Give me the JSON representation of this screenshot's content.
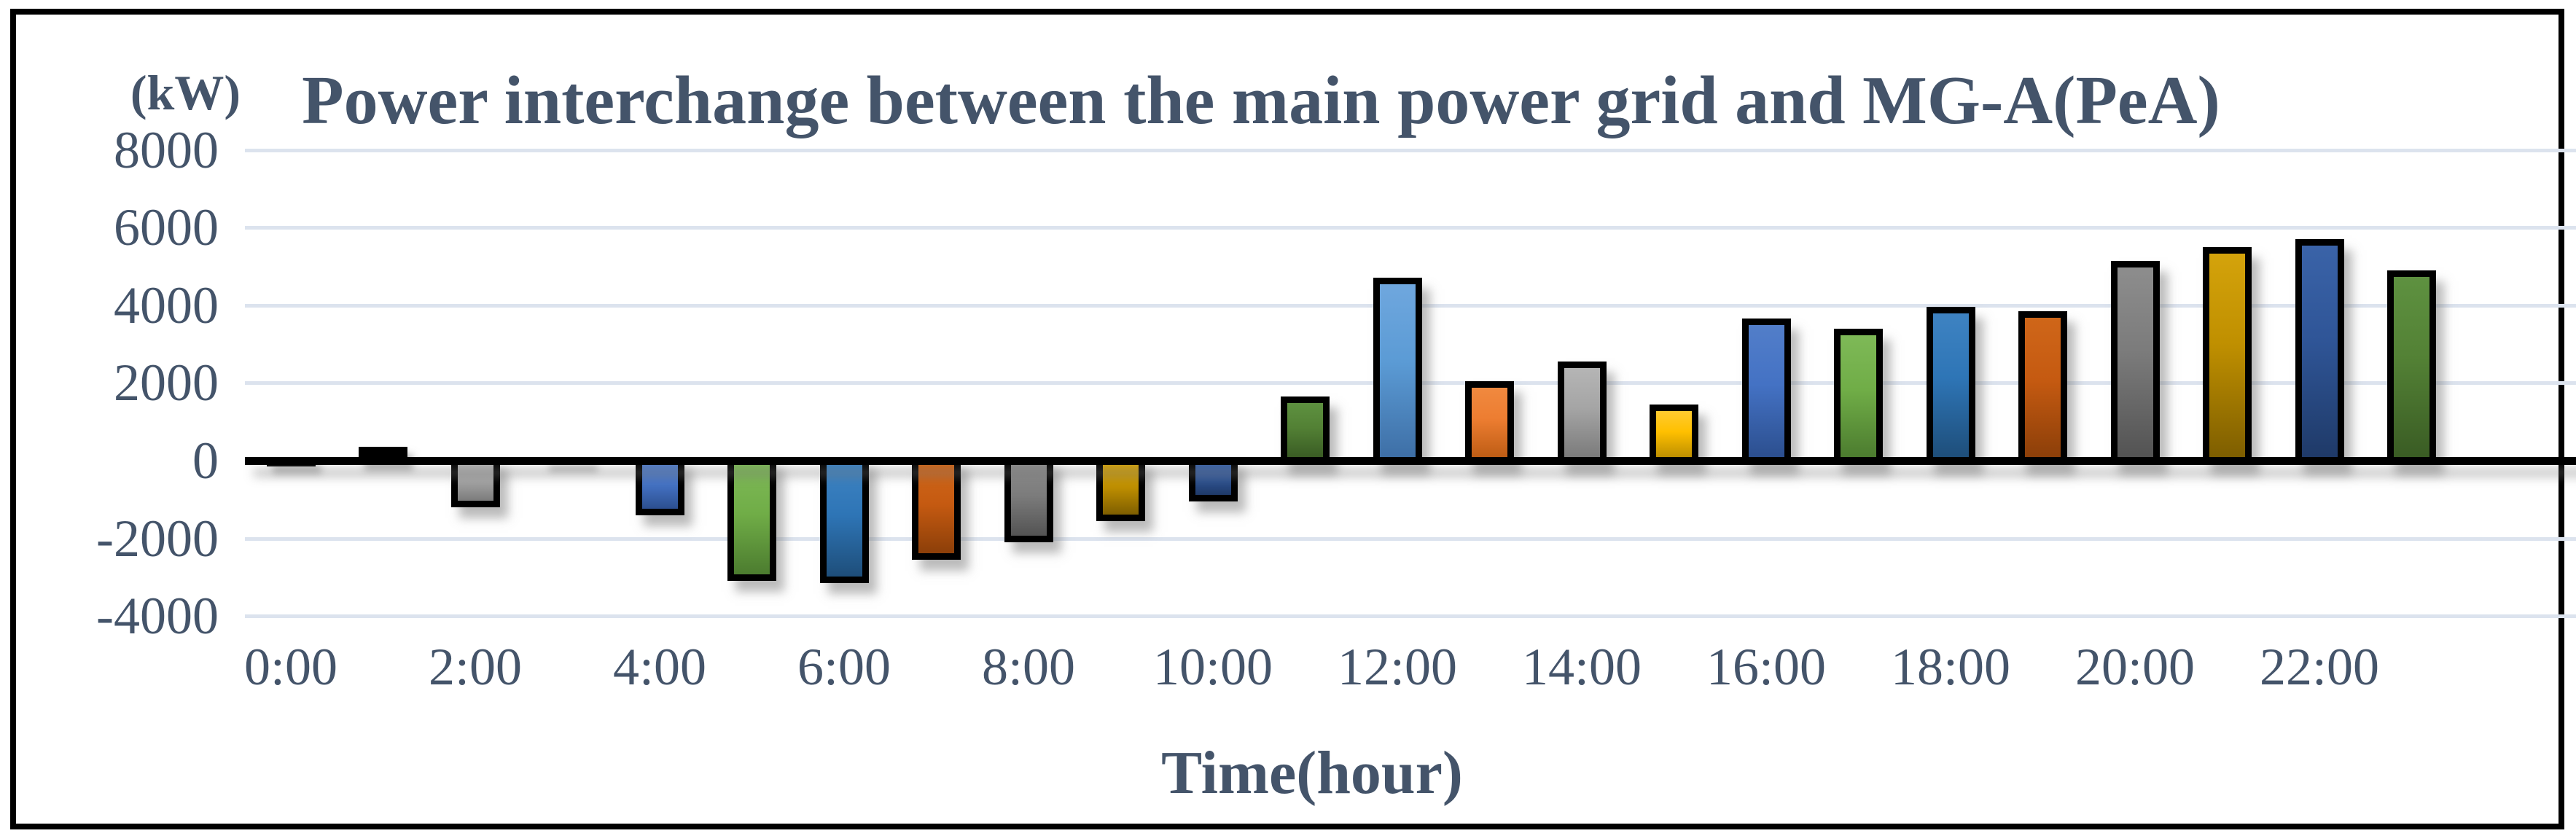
{
  "chart_data": {
    "type": "bar",
    "title": "Power interchange between the main power grid and MG-A(PeA)",
    "y_unit_label": "(kW)",
    "xlabel": "Time(hour)",
    "ylim": [
      -4000,
      8000
    ],
    "ytick_step": 2000,
    "yticks": [
      8000,
      6000,
      4000,
      2000,
      0,
      -2000,
      -4000
    ],
    "grid": true,
    "legend": false,
    "categories": [
      "0:00",
      "1:00",
      "2:00",
      "3:00",
      "4:00",
      "5:00",
      "6:00",
      "7:00",
      "8:00",
      "9:00",
      "10:00",
      "11:00",
      "12:00",
      "13:00",
      "14:00",
      "15:00",
      "16:00",
      "17:00",
      "18:00",
      "19:00",
      "20:00",
      "21:00",
      "22:00",
      "23:00"
    ],
    "values": [
      -150,
      350,
      -1200,
      -100,
      -1400,
      -3100,
      -3150,
      -2550,
      -2100,
      -1550,
      -1050,
      1650,
      4700,
      2050,
      2550,
      1450,
      3650,
      3400,
      3950,
      3850,
      5150,
      5500,
      5700,
      4900
    ],
    "xtick_labels_shown": [
      "0:00",
      "2:00",
      "4:00",
      "6:00",
      "8:00",
      "10:00",
      "12:00",
      "14:00",
      "16:00",
      "18:00",
      "20:00",
      "22:00"
    ],
    "color_cycle_period_hours": 12,
    "palette": [
      {
        "name": "light-blue",
        "base": "#5B9BD5",
        "top": "#6FA7DE",
        "bottom": "#3E6FA6"
      },
      {
        "name": "orange",
        "base": "#ED7D31",
        "top": "#F0893F",
        "bottom": "#BE5D15"
      },
      {
        "name": "gray",
        "base": "#A5A5A5",
        "top": "#B5B5B5",
        "bottom": "#7B7B7B"
      },
      {
        "name": "gold",
        "base": "#FFC000",
        "top": "#FFCB30",
        "bottom": "#BD8F00"
      },
      {
        "name": "blue",
        "base": "#4472C4",
        "top": "#527EC9",
        "bottom": "#2C4F8F"
      },
      {
        "name": "green",
        "base": "#70AD47",
        "top": "#7EB957",
        "bottom": "#4C7C2F"
      },
      {
        "name": "steel-blue",
        "base": "#2E75B6",
        "top": "#3E83C2",
        "bottom": "#1E4E7A"
      },
      {
        "name": "dark-orange",
        "base": "#C55A11",
        "top": "#CF6619",
        "bottom": "#8C3F09"
      },
      {
        "name": "dark-gray",
        "base": "#7B7B7B",
        "top": "#8D8D8D",
        "bottom": "#535353"
      },
      {
        "name": "dark-gold",
        "base": "#BF8F00",
        "top": "#D4A30B",
        "bottom": "#7E5E00"
      },
      {
        "name": "dark-blue",
        "base": "#2F5597",
        "top": "#3A63A8",
        "bottom": "#1F3A68"
      },
      {
        "name": "dark-green",
        "base": "#538135",
        "top": "#5E9140",
        "bottom": "#3A5C24"
      }
    ]
  },
  "style": {
    "text_color": "#44546A",
    "gridline_color": "#DCE3EE",
    "axis_color": "#000000",
    "bar_border_color": "#000000",
    "frame_border_color": "#000000",
    "background": "#FFFFFF"
  }
}
